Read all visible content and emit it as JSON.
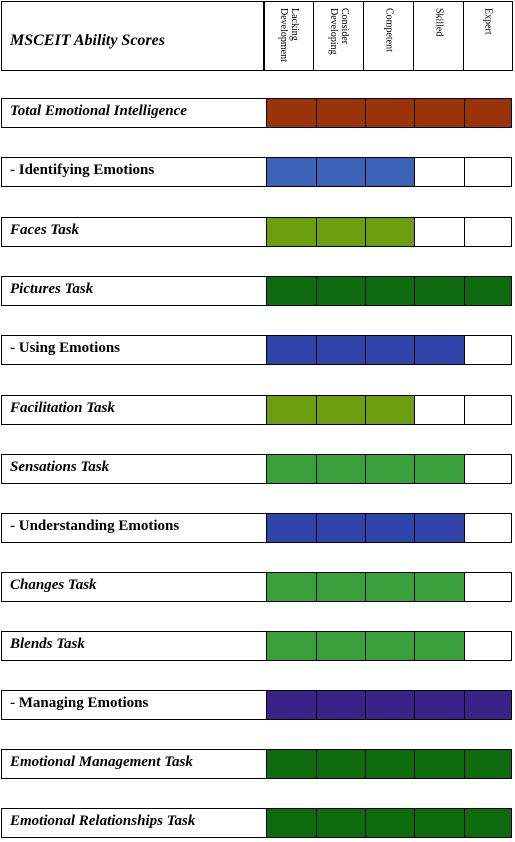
{
  "chart_data": {
    "type": "table",
    "title": "MSCEIT Ability Scores",
    "levels": [
      {
        "label_lines": [
          "Lacking",
          "Development"
        ]
      },
      {
        "label_lines": [
          "Consider",
          "Developing"
        ]
      },
      {
        "label_lines": [
          "Competent"
        ]
      },
      {
        "label_lines": [
          "Skilled"
        ]
      },
      {
        "label_lines": [
          "Expert"
        ]
      }
    ],
    "rows": [
      {
        "label": "Total Emotional Intelligence",
        "italic": true,
        "filled": 5,
        "color": "#9a3309"
      },
      {
        "label": "- Identifying Emotions",
        "italic": false,
        "filled": 3,
        "color": "#3a63b8"
      },
      {
        "label": "Faces Task",
        "italic": true,
        "filled": 3,
        "color": "#6e9e0f"
      },
      {
        "label": "Pictures Task",
        "italic": true,
        "filled": 5,
        "color": "#0d6b0d"
      },
      {
        "label": "- Using Emotions",
        "italic": false,
        "filled": 4,
        "color": "#2e44a8"
      },
      {
        "label": "Facilitation Task",
        "italic": true,
        "filled": 3,
        "color": "#6e9e0f"
      },
      {
        "label": "Sensations Task",
        "italic": true,
        "filled": 4,
        "color": "#37a03a"
      },
      {
        "label": "- Understanding Emotions",
        "italic": false,
        "filled": 4,
        "color": "#2e44a8"
      },
      {
        "label": "Changes Task",
        "italic": true,
        "filled": 4,
        "color": "#37a03a"
      },
      {
        "label": "Blends Task",
        "italic": true,
        "filled": 4,
        "color": "#37a03a"
      },
      {
        "label": "- Managing Emotions",
        "italic": false,
        "filled": 5,
        "color": "#3a2388"
      },
      {
        "label": "Emotional Management Task",
        "italic": true,
        "filled": 5,
        "color": "#0d6b0d"
      },
      {
        "label": "Emotional Relationships Task",
        "italic": true,
        "filled": 5,
        "color": "#0d6b0d"
      }
    ]
  }
}
